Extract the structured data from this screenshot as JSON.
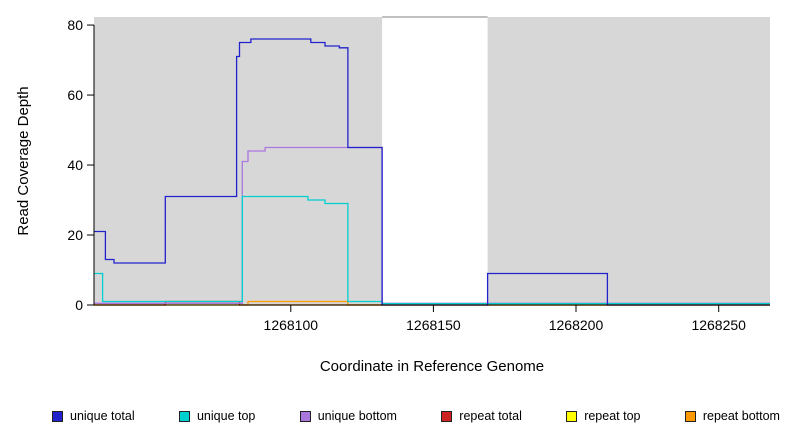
{
  "chart_data": {
    "type": "line",
    "step": true,
    "title": "",
    "xlabel": "Coordinate in Reference Genome",
    "ylabel": "Read Coverage Depth",
    "xlim": [
      1268031,
      1268268
    ],
    "ylim": [
      0,
      82.3
    ],
    "x_ticks": [
      1268100,
      1268150,
      1268200,
      1268250
    ],
    "y_ticks": [
      0,
      20,
      40,
      60,
      80
    ],
    "grid": false,
    "legend_position": "bottom",
    "shaded_color": "#d7d7d7",
    "background_regions": [
      {
        "x0": 1268031,
        "x1": 1268132
      },
      {
        "x0": 1268169,
        "x1": 1268268
      }
    ],
    "gap_top_border": {
      "x0": 1268132,
      "x1": 1268169,
      "color": "#808080"
    },
    "series": [
      {
        "name": "unique total",
        "color": "#2222cc",
        "points": [
          [
            1268031,
            21
          ],
          [
            1268035,
            21
          ],
          [
            1268035,
            13
          ],
          [
            1268038,
            13
          ],
          [
            1268038,
            12
          ],
          [
            1268056,
            12
          ],
          [
            1268056,
            31
          ],
          [
            1268081,
            31
          ],
          [
            1268081,
            71
          ],
          [
            1268082,
            71
          ],
          [
            1268082,
            75
          ],
          [
            1268086,
            75
          ],
          [
            1268086,
            76
          ],
          [
            1268107,
            76
          ],
          [
            1268107,
            75
          ],
          [
            1268112,
            75
          ],
          [
            1268112,
            74
          ],
          [
            1268117,
            74
          ],
          [
            1268117,
            73.5
          ],
          [
            1268120,
            73.5
          ],
          [
            1268120,
            45
          ],
          [
            1268132,
            45
          ],
          [
            1268132,
            0
          ],
          [
            1268169,
            0
          ],
          [
            1268169,
            9
          ],
          [
            1268211,
            9
          ],
          [
            1268211,
            0
          ],
          [
            1268268,
            0
          ]
        ]
      },
      {
        "name": "unique top",
        "color": "#00cfcf",
        "points": [
          [
            1268031,
            9
          ],
          [
            1268034,
            9
          ],
          [
            1268034,
            1
          ],
          [
            1268083,
            1
          ],
          [
            1268083,
            31
          ],
          [
            1268106,
            31
          ],
          [
            1268106,
            30
          ],
          [
            1268112,
            30
          ],
          [
            1268112,
            29
          ],
          [
            1268120,
            29
          ],
          [
            1268120,
            1
          ],
          [
            1268132,
            1
          ],
          [
            1268132,
            0.4
          ],
          [
            1268268,
            0.4
          ]
        ]
      },
      {
        "name": "unique bottom",
        "color": "#aa77dd",
        "points": [
          [
            1268031,
            0.5
          ],
          [
            1268083,
            0.5
          ],
          [
            1268083,
            41
          ],
          [
            1268085,
            41
          ],
          [
            1268085,
            44
          ],
          [
            1268091,
            44
          ],
          [
            1268091,
            45
          ],
          [
            1268132,
            45
          ],
          [
            1268132,
            0.5
          ],
          [
            1268268,
            0.5
          ]
        ]
      },
      {
        "name": "repeat total",
        "color": "#cc2222",
        "points": [
          [
            1268031,
            0
          ],
          [
            1268056,
            0
          ],
          [
            1268056,
            1
          ],
          [
            1268082,
            1
          ],
          [
            1268082,
            0
          ],
          [
            1268268,
            0
          ]
        ]
      },
      {
        "name": "repeat top",
        "color": "#ffff00",
        "points": [
          [
            1268031,
            0
          ],
          [
            1268268,
            0
          ]
        ]
      },
      {
        "name": "repeat bottom",
        "color": "#ff9900",
        "points": [
          [
            1268031,
            0
          ],
          [
            1268085,
            0
          ],
          [
            1268085,
            1
          ],
          [
            1268120,
            1
          ],
          [
            1268120,
            0
          ],
          [
            1268268,
            0
          ]
        ]
      }
    ]
  }
}
